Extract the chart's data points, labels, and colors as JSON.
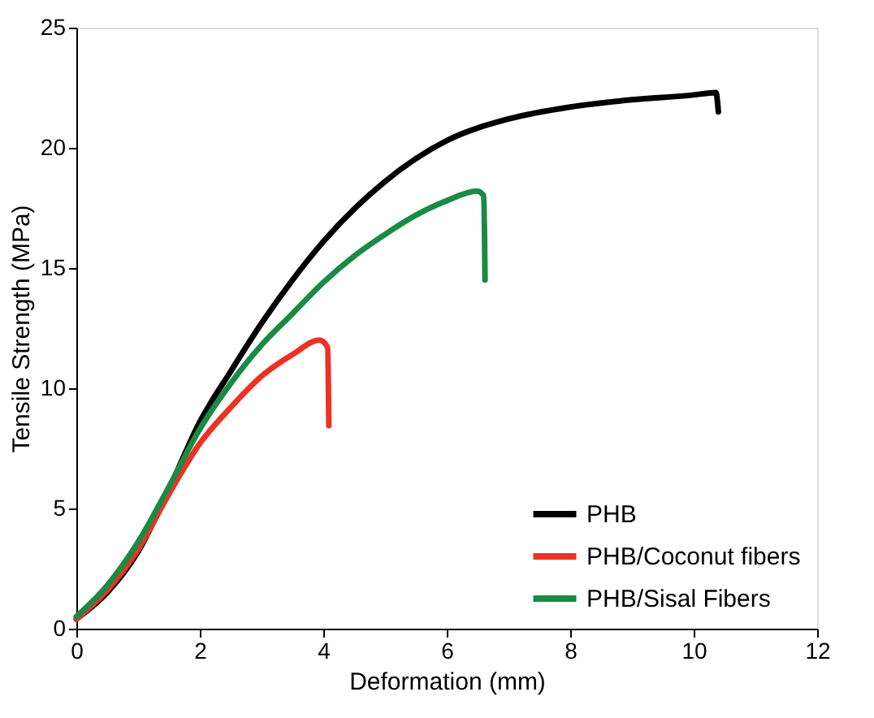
{
  "chart_data": {
    "type": "line",
    "xlabel": "Deformation (mm)",
    "ylabel": "Tensile Strength (MPa)",
    "xlim": [
      0,
      12
    ],
    "ylim": [
      0,
      25
    ],
    "xticks": [
      0,
      2,
      4,
      6,
      8,
      10,
      12
    ],
    "yticks": [
      0,
      5,
      10,
      15,
      20,
      25
    ],
    "grid": false,
    "legend": "bottom right",
    "line_style": "solid",
    "marker": "none",
    "series": [
      {
        "name": "PHB",
        "color": "#000000",
        "x": [
          0,
          0.5,
          1,
          1.5,
          2,
          2.5,
          3,
          3.5,
          4,
          5,
          6,
          7,
          8,
          9,
          10,
          10.36,
          10.4
        ],
        "values": [
          0.4,
          1.5,
          3.2,
          5.8,
          8.6,
          10.7,
          12.7,
          14.5,
          16.1,
          18.6,
          20.3,
          21.2,
          21.7,
          22.0,
          22.2,
          22.3,
          21.5
        ]
      },
      {
        "name": "PHB/Coconut fibers",
        "color": "#ee3124",
        "x": [
          0,
          0.5,
          1,
          1.5,
          2,
          2.5,
          3,
          3.5,
          3.94,
          4.07,
          4.09
        ],
        "values": [
          0.4,
          1.6,
          3.3,
          5.6,
          7.7,
          9.2,
          10.5,
          11.4,
          12.0,
          11.7,
          8.45
        ]
      },
      {
        "name": "PHB/Sisal Fibers",
        "color": "#1a8a44",
        "x": [
          0,
          0.5,
          1,
          1.5,
          2,
          2.5,
          3,
          3.5,
          4,
          4.5,
          5,
          5.5,
          6,
          6.49,
          6.6,
          6.62
        ],
        "values": [
          0.5,
          1.8,
          3.6,
          5.9,
          8.3,
          10.2,
          11.8,
          13.1,
          14.4,
          15.5,
          16.4,
          17.2,
          17.8,
          18.2,
          18.0,
          14.5
        ]
      }
    ]
  }
}
